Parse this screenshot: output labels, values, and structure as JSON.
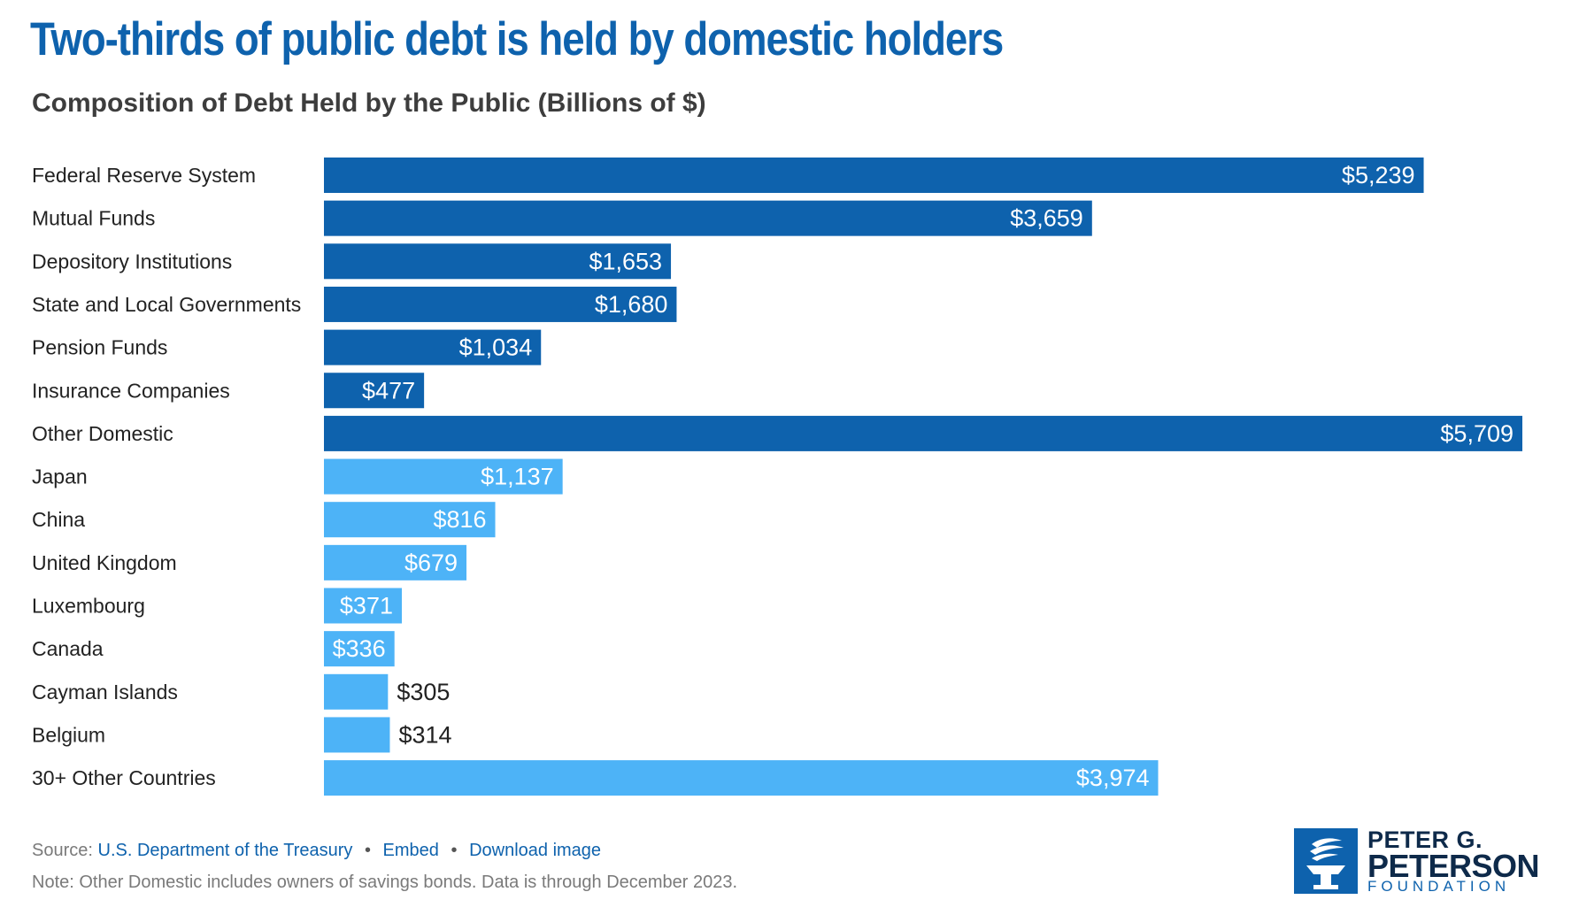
{
  "header": {
    "title": "Two-thirds of public debt is held by domestic holders",
    "subtitle": "Composition of Debt Held by the Public (Billions of $)"
  },
  "chart_data": {
    "type": "bar",
    "orientation": "horizontal",
    "categories": [
      "Federal Reserve System",
      "Mutual Funds",
      "Depository Institutions",
      "State and Local Governments",
      "Pension Funds",
      "Insurance Companies",
      "Other Domestic",
      "Japan",
      "China",
      "United Kingdom",
      "Luxembourg",
      "Canada",
      "Cayman Islands",
      "Belgium",
      "30+ Other Countries"
    ],
    "values": [
      5239,
      3659,
      1653,
      1680,
      1034,
      477,
      5709,
      1137,
      816,
      679,
      371,
      336,
      305,
      314,
      3974
    ],
    "labels": [
      "$5,239",
      "$3,659",
      "$1,653",
      "$1,680",
      "$1,034",
      "$477",
      "$5,709",
      "$1,137",
      "$816",
      "$679",
      "$371",
      "$336",
      "$305",
      "$314",
      "$3,974"
    ],
    "groups": [
      "domestic",
      "domestic",
      "domestic",
      "domestic",
      "domestic",
      "domestic",
      "domestic",
      "foreign",
      "foreign",
      "foreign",
      "foreign",
      "foreign",
      "foreign",
      "foreign",
      "foreign"
    ],
    "colors": {
      "domestic": "#0e62ad",
      "foreign": "#4db3f7",
      "inside_label": "#ffffff",
      "outside_label": "#222222"
    },
    "xlim": [
      0,
      5709
    ],
    "grid": false,
    "legend": "none"
  },
  "footer": {
    "source_prefix": "Source:",
    "source_link": "U.S. Department of the Treasury",
    "embed_link": "Embed",
    "download_link": "Download image",
    "separator": "•",
    "note": "Note: Other Domestic includes owners of savings bonds. Data is through December 2023."
  },
  "logo": {
    "line1": "PETER G.",
    "line2": "PETERSON",
    "line3": "FOUNDATION",
    "icon": "torch-icon"
  }
}
